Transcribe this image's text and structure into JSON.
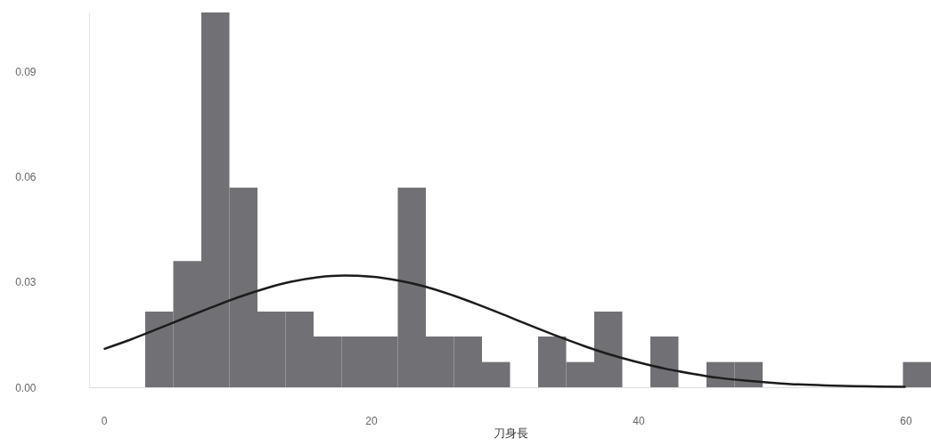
{
  "chart_data": {
    "type": "histogram",
    "xlabel": "刀身長",
    "color": "#717175",
    "bins": [
      3.1,
      5.2,
      7.3,
      9.4,
      11.5,
      13.6,
      15.7,
      17.8,
      19.9,
      22.0,
      24.1,
      26.2,
      28.3,
      30.4,
      32.5,
      34.6,
      36.7,
      38.8,
      40.9,
      43.0,
      45.1,
      47.2,
      49.3,
      51.4,
      53.5,
      55.6,
      57.7,
      59.8,
      61.9
    ],
    "values": [
      0.0216,
      0.036,
      0.107,
      0.057,
      0.0216,
      0.0216,
      0.0145,
      0.0145,
      0.0145,
      0.057,
      0.0145,
      0.0145,
      0.0072,
      0,
      0.0145,
      0.0072,
      0.0216,
      0,
      0.0145,
      0,
      0.0072,
      0.0072,
      0,
      0,
      0,
      0,
      0,
      0.0072
    ],
    "series": [
      {
        "type": "line",
        "color": "#1c1c1c",
        "x": [
          0,
          2,
          4,
          6,
          8,
          10,
          12,
          14,
          16,
          18,
          20,
          22,
          24,
          26,
          28,
          30,
          32,
          34,
          36,
          38,
          40,
          42,
          44,
          46,
          48,
          50,
          52,
          54,
          56,
          58,
          60
        ],
        "values": [
          0.0109,
          0.0136,
          0.0166,
          0.0197,
          0.0227,
          0.0256,
          0.0281,
          0.0301,
          0.0314,
          0.0319,
          0.0316,
          0.0305,
          0.0288,
          0.0264,
          0.0236,
          0.0206,
          0.0175,
          0.0145,
          0.0117,
          0.0092,
          0.0071,
          0.0053,
          0.0039,
          0.0027,
          0.0019,
          0.0013,
          0.0008,
          0.0005,
          0.0003,
          0.0002,
          0.0001
        ]
      }
    ],
    "xlim": [
      -1.1,
      61.9
    ],
    "xticks": [
      0,
      20,
      40,
      60
    ],
    "ylim": [
      0,
      0.107
    ],
    "yticks": [
      {
        "value": 0,
        "label": "0.00"
      },
      {
        "value": 0.03,
        "label": "0.03"
      },
      {
        "value": 0.06,
        "label": "0.06"
      },
      {
        "value": 0.09,
        "label": "0.09"
      }
    ]
  }
}
